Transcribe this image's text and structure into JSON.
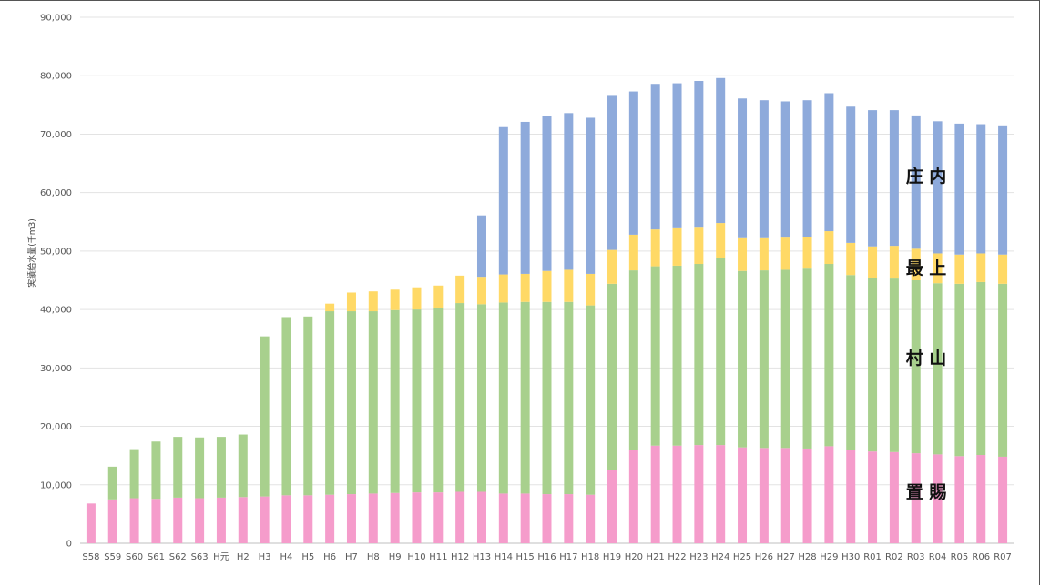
{
  "chart_data": {
    "type": "bar",
    "stacked": true,
    "ylabel": "実績給水量(千m3)",
    "ylim": [
      0,
      90000
    ],
    "yticks": [
      "0",
      "10,000",
      "20,000",
      "30,000",
      "40,000",
      "50,000",
      "60,000",
      "70,000",
      "80,000",
      "90,000"
    ],
    "grid": true,
    "categories": [
      "S58",
      "S59",
      "S60",
      "S61",
      "S62",
      "S63",
      "H元",
      "H2",
      "H3",
      "H4",
      "H5",
      "H6",
      "H7",
      "H8",
      "H9",
      "H10",
      "H11",
      "H12",
      "H13",
      "H14",
      "H15",
      "H16",
      "H17",
      "H18",
      "H19",
      "H20",
      "H21",
      "H22",
      "H23",
      "H24",
      "H25",
      "H26",
      "H27",
      "H28",
      "H29",
      "H30",
      "R01",
      "R02",
      "R03",
      "R04",
      "R05",
      "R06",
      "R07"
    ],
    "series": [
      {
        "name": "置賜",
        "color": "#f59ccb",
        "values": [
          6800,
          7500,
          7700,
          7600,
          7800,
          7700,
          7800,
          7900,
          8000,
          8200,
          8200,
          8300,
          8400,
          8500,
          8600,
          8700,
          8700,
          8800,
          8800,
          8500,
          8500,
          8400,
          8400,
          8300,
          12500,
          16000,
          16700,
          16700,
          16800,
          16800,
          16400,
          16300,
          16300,
          16200,
          16600,
          15900,
          15700,
          15600,
          15400,
          15200,
          14900,
          15100,
          14800
        ]
      },
      {
        "name": "村山",
        "color": "#a8d08d",
        "values": [
          0,
          5600,
          8400,
          9800,
          10400,
          10400,
          10400,
          10700,
          27400,
          30500,
          30600,
          31400,
          31300,
          31200,
          31300,
          31300,
          31500,
          32300,
          32100,
          32700,
          32800,
          32900,
          32900,
          32400,
          31900,
          30700,
          30700,
          30800,
          31000,
          32000,
          30200,
          30400,
          30500,
          30800,
          31200,
          30000,
          29700,
          29700,
          29600,
          29300,
          29500,
          29600,
          29600
        ]
      },
      {
        "name": "最上",
        "color": "#ffd966",
        "values": [
          0,
          0,
          0,
          0,
          0,
          0,
          0,
          0,
          0,
          0,
          0,
          1300,
          3200,
          3400,
          3500,
          3800,
          3900,
          4700,
          4700,
          4800,
          4800,
          5300,
          5500,
          5400,
          5800,
          6100,
          6300,
          6400,
          6200,
          6000,
          5600,
          5500,
          5500,
          5400,
          5600,
          5500,
          5400,
          5600,
          5400,
          5100,
          5000,
          4900,
          5000
        ]
      },
      {
        "name": "庄内",
        "color": "#8eaadb",
        "values": [
          0,
          0,
          0,
          0,
          0,
          0,
          0,
          0,
          0,
          0,
          0,
          0,
          0,
          0,
          0,
          0,
          0,
          0,
          10500,
          25200,
          26000,
          26500,
          26800,
          26700,
          26500,
          24500,
          24900,
          24800,
          25100,
          24800,
          23900,
          23600,
          23300,
          23400,
          23600,
          23300,
          23300,
          23200,
          22800,
          22600,
          22400,
          22100,
          22100
        ]
      }
    ],
    "region_labels": [
      "庄 内",
      "最 上",
      "村 山",
      "置 賜"
    ]
  }
}
